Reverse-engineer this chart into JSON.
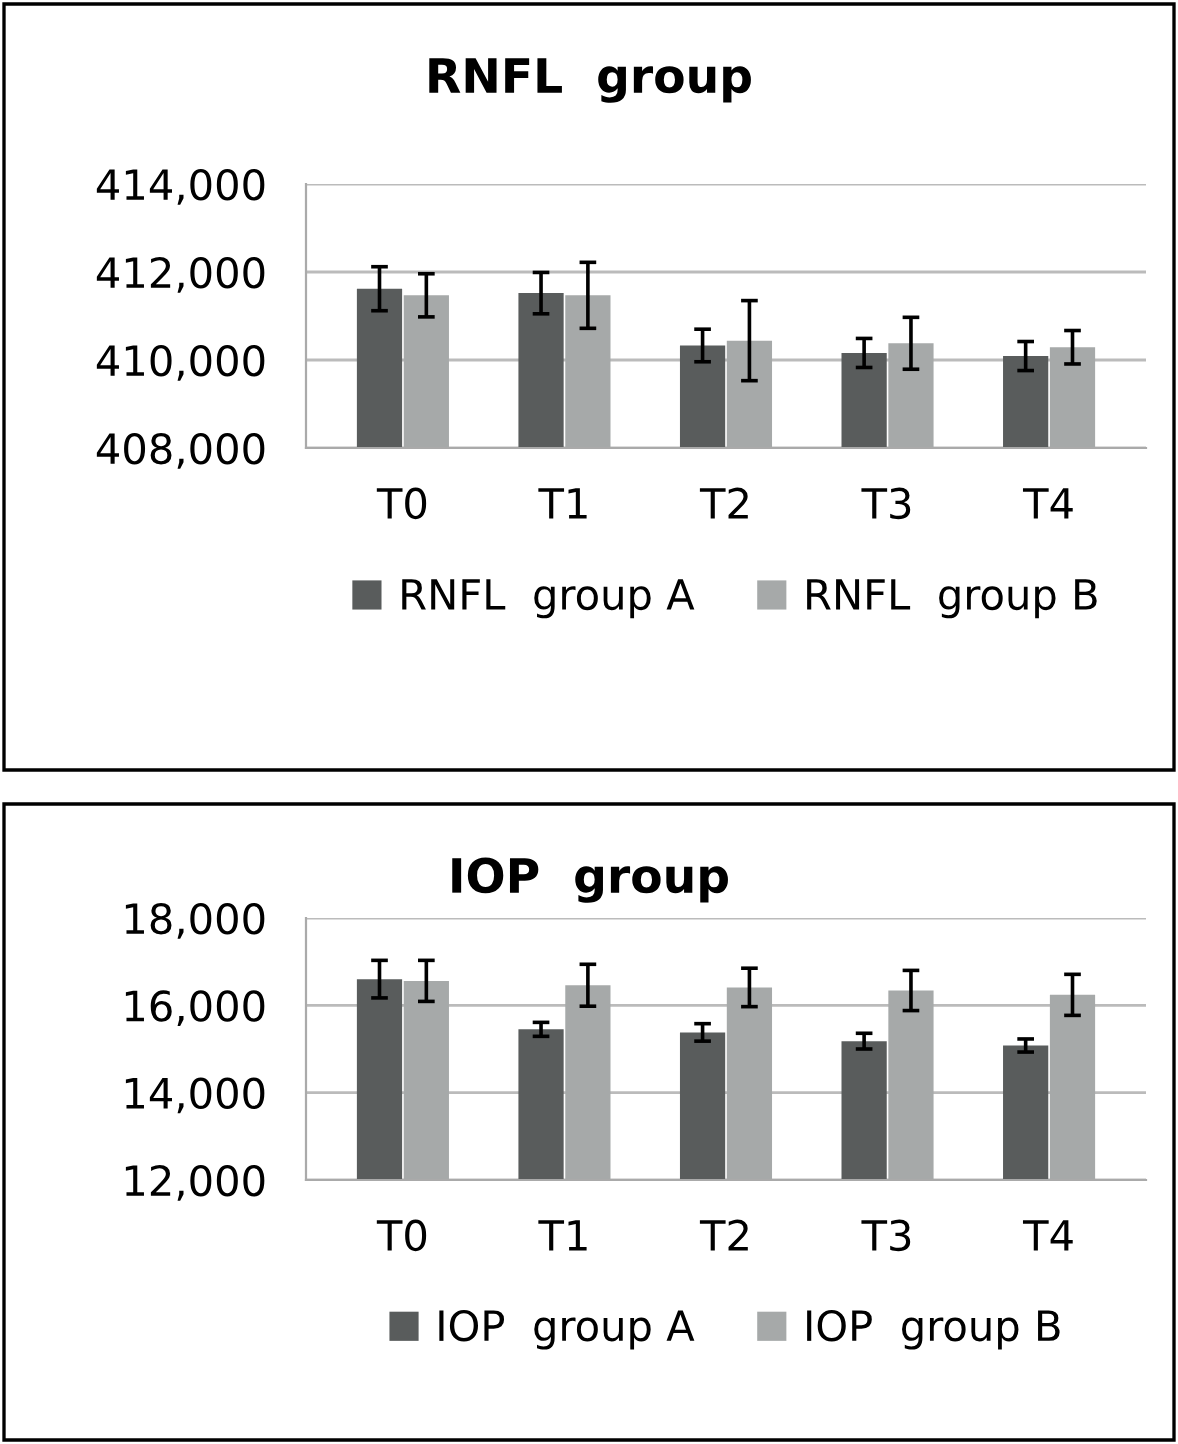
{
  "chart_data": [
    {
      "type": "bar",
      "title": "RNFL  group",
      "categories": [
        "T0",
        "T1",
        "T2",
        "T3",
        "T4"
      ],
      "ylim": [
        408000,
        414000
      ],
      "yticks": [
        {
          "value": 408000,
          "label": "408,000"
        },
        {
          "value": 410000,
          "label": "410,000"
        },
        {
          "value": 412000,
          "label": "412,000"
        },
        {
          "value": 414000,
          "label": "414,000"
        }
      ],
      "grid": "y",
      "legend": "bottom",
      "series": [
        {
          "name": "RNFL  group A",
          "color": "#595c5c",
          "values": [
            411620,
            411520,
            410330,
            410160,
            410090
          ],
          "errors": [
            500,
            470,
            370,
            330,
            330
          ]
        },
        {
          "name": "RNFL  group B",
          "color": "#a6a9a9",
          "values": [
            411470,
            411470,
            410440,
            410380,
            410290
          ],
          "errors": [
            490,
            750,
            910,
            590,
            380
          ]
        }
      ]
    },
    {
      "type": "bar",
      "title": "IOP  group",
      "categories": [
        "T0",
        "T1",
        "T2",
        "T3",
        "T4"
      ],
      "ylim": [
        12000,
        18000
      ],
      "yticks": [
        {
          "value": 12000,
          "label": "12,000"
        },
        {
          "value": 14000,
          "label": "14,000"
        },
        {
          "value": 16000,
          "label": "16,000"
        },
        {
          "value": 18000,
          "label": "18,000"
        }
      ],
      "grid": "y",
      "legend": "bottom",
      "series": [
        {
          "name": "IOP  group A",
          "color": "#595c5c",
          "values": [
            16600,
            15450,
            15380,
            15180,
            15080
          ],
          "errors": [
            430,
            160,
            200,
            180,
            150
          ]
        },
        {
          "name": "IOP  group B",
          "color": "#a6a9a9",
          "values": [
            16560,
            16460,
            16410,
            16340,
            16240
          ],
          "errors": [
            470,
            480,
            440,
            460,
            470
          ]
        }
      ]
    }
  ]
}
